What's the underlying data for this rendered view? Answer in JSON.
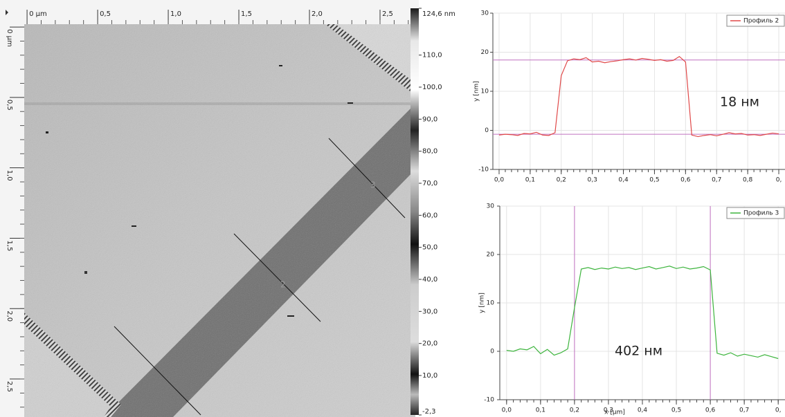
{
  "chart_data": [
    {
      "type": "image",
      "xlim": [
        -0.02,
        2.75
      ],
      "ylim": [
        -0.02,
        2.77
      ],
      "xticks": [
        {
          "value": 0,
          "label": "0 µm"
        },
        {
          "value": 0.5,
          "label": "0,5"
        },
        {
          "value": 1.0,
          "label": "1,0"
        },
        {
          "value": 1.5,
          "label": "1,5"
        },
        {
          "value": 2.0,
          "label": "2,0"
        },
        {
          "value": 2.5,
          "label": "2,5"
        }
      ],
      "yticks": [
        {
          "value": 0,
          "label": "0 µm"
        },
        {
          "value": 0.5,
          "label": "0,5"
        },
        {
          "value": 1.0,
          "label": "1,0"
        },
        {
          "value": 1.5,
          "label": "1,5"
        },
        {
          "value": 2.0,
          "label": "2,0"
        },
        {
          "value": 2.5,
          "label": "2,5"
        }
      ],
      "colorbar": {
        "lim": [
          -2.3,
          124.6
        ],
        "ticks": [
          {
            "value": 124.6,
            "label": "124,6 nm"
          },
          {
            "value": 110,
            "label": "110,0"
          },
          {
            "value": 100,
            "label": "100,0"
          },
          {
            "value": 90,
            "label": "90,0"
          },
          {
            "value": 80,
            "label": "80,0"
          },
          {
            "value": 70,
            "label": "70,0"
          },
          {
            "value": 60,
            "label": "60,0"
          },
          {
            "value": 50,
            "label": "50,0"
          },
          {
            "value": 40,
            "label": "40,0"
          },
          {
            "value": 30,
            "label": "30,0"
          },
          {
            "value": 20,
            "label": "20,0"
          },
          {
            "value": 10,
            "label": "10,0"
          },
          {
            "value": -2.3,
            "label": "-2,3"
          }
        ]
      },
      "profile_labels": [
        "3",
        "2"
      ]
    },
    {
      "type": "line",
      "ylabel": "y [nm]",
      "annotation": "18 нм",
      "xlim": [
        -0.02,
        0.92
      ],
      "ylim": [
        -10,
        30
      ],
      "xticks": [
        {
          "value": 0,
          "label": "0,0"
        },
        {
          "value": 0.1,
          "label": "0,1"
        },
        {
          "value": 0.2,
          "label": "0,2"
        },
        {
          "value": 0.3,
          "label": "0,3"
        },
        {
          "value": 0.4,
          "label": "0,4"
        },
        {
          "value": 0.5,
          "label": "0,5"
        },
        {
          "value": 0.6,
          "label": "0,6"
        },
        {
          "value": 0.7,
          "label": "0,7"
        },
        {
          "value": 0.8,
          "label": "0,8"
        },
        {
          "value": 0.9,
          "label": "0,"
        }
      ],
      "yticks": [
        -10,
        0,
        10,
        20,
        30
      ],
      "grid": true,
      "legend": "top-right",
      "hlines": [
        18,
        -1
      ],
      "x": [
        0,
        0.02,
        0.04,
        0.06,
        0.08,
        0.1,
        0.12,
        0.14,
        0.16,
        0.18,
        0.2,
        0.22,
        0.24,
        0.26,
        0.28,
        0.3,
        0.32,
        0.34,
        0.36,
        0.38,
        0.4,
        0.42,
        0.44,
        0.46,
        0.48,
        0.5,
        0.52,
        0.54,
        0.56,
        0.58,
        0.6,
        0.62,
        0.64,
        0.66,
        0.68,
        0.7,
        0.72,
        0.74,
        0.76,
        0.78,
        0.8,
        0.82,
        0.84,
        0.86,
        0.88,
        0.9
      ],
      "series": [
        {
          "name": "Профиль 2",
          "color": "#e04848",
          "values": [
            -1.2,
            -1.0,
            -1.1,
            -1.3,
            -0.8,
            -0.9,
            -0.5,
            -1.2,
            -1.3,
            -0.6,
            14.0,
            17.8,
            18.3,
            18.1,
            18.6,
            17.5,
            17.7,
            17.3,
            17.6,
            17.8,
            18.1,
            18.3,
            18.0,
            18.4,
            18.2,
            17.9,
            18.1,
            17.7,
            17.9,
            18.9,
            17.5,
            -1.2,
            -1.6,
            -1.3,
            -1.1,
            -1.4,
            -1.0,
            -0.6,
            -0.9,
            -0.8,
            -1.2,
            -1.1,
            -1.3,
            -1.0,
            -0.7,
            -0.9
          ]
        }
      ]
    },
    {
      "type": "line",
      "ylabel": "y [nm]",
      "xlabel": "x [µm]",
      "annotation": "402 нм",
      "xlim": [
        -0.02,
        0.82
      ],
      "ylim": [
        -10,
        30
      ],
      "xticks": [
        {
          "value": 0,
          "label": "0,0"
        },
        {
          "value": 0.1,
          "label": "0,1"
        },
        {
          "value": 0.2,
          "label": "0,2"
        },
        {
          "value": 0.3,
          "label": "0,3"
        },
        {
          "value": 0.4,
          "label": "0,4"
        },
        {
          "value": 0.5,
          "label": "0,5"
        },
        {
          "value": 0.6,
          "label": "0,6"
        },
        {
          "value": 0.7,
          "label": "0,7"
        },
        {
          "value": 0.8,
          "label": "0,"
        }
      ],
      "yticks": [
        -10,
        0,
        10,
        20,
        30
      ],
      "grid": true,
      "legend": "top-right",
      "vlines": [
        0.2,
        0.6
      ],
      "x": [
        0,
        0.02,
        0.04,
        0.06,
        0.08,
        0.1,
        0.12,
        0.14,
        0.16,
        0.18,
        0.2,
        0.22,
        0.24,
        0.26,
        0.28,
        0.3,
        0.32,
        0.34,
        0.36,
        0.38,
        0.4,
        0.42,
        0.44,
        0.46,
        0.48,
        0.5,
        0.52,
        0.54,
        0.56,
        0.58,
        0.6,
        0.62,
        0.64,
        0.66,
        0.68,
        0.7,
        0.72,
        0.74,
        0.76,
        0.78,
        0.8
      ],
      "series": [
        {
          "name": "Профиль 3",
          "color": "#3cb43c",
          "values": [
            0.2,
            0.0,
            0.5,
            0.3,
            1.0,
            -0.5,
            0.4,
            -0.8,
            -0.3,
            0.5,
            9.0,
            17.0,
            17.3,
            16.9,
            17.2,
            17.0,
            17.4,
            17.1,
            17.3,
            16.9,
            17.2,
            17.5,
            17.0,
            17.3,
            17.6,
            17.1,
            17.4,
            17.0,
            17.2,
            17.5,
            16.8,
            -0.4,
            -0.8,
            -0.3,
            -1.0,
            -0.6,
            -0.9,
            -1.2,
            -0.7,
            -1.1,
            -1.5
          ]
        }
      ]
    }
  ]
}
